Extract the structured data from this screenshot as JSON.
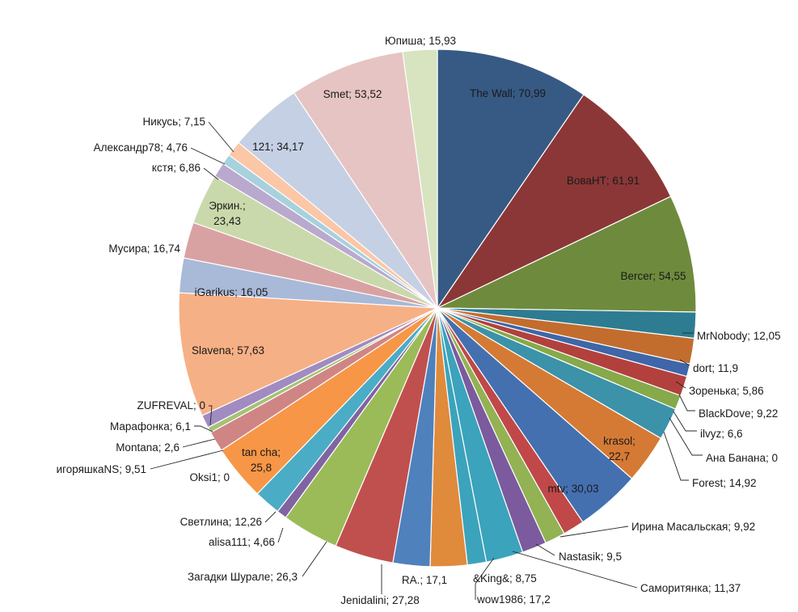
{
  "chart_data": {
    "type": "pie",
    "title": "",
    "start_angle_deg": 0,
    "direction": "clockwise",
    "legend": "none",
    "slices": [
      {
        "label": "The Wall",
        "value": 70.99,
        "value_text": "70,99",
        "color": "#375a84"
      },
      {
        "label": "ВоваНТ",
        "value": 61.91,
        "value_text": "61,91",
        "color": "#8b3737"
      },
      {
        "label": "Bercer",
        "value": 54.55,
        "value_text": "54,55",
        "color": "#6e8b3d"
      },
      {
        "label": "MrNobody",
        "value": 12.05,
        "value_text": "12,05",
        "color": "#2e7c92"
      },
      {
        "label": "dort",
        "value": 11.9,
        "value_text": "11,9",
        "color": "#c26d2e"
      },
      {
        "label": "Зоренька",
        "value": 5.86,
        "value_text": "5,86",
        "color": "#3e66a8"
      },
      {
        "label": "BlackDove",
        "value": 9.22,
        "value_text": "9,22",
        "color": "#b2413e"
      },
      {
        "label": "ilvyz",
        "value": 6.6,
        "value_text": "6,6",
        "color": "#86a94a"
      },
      {
        "label": "Ана Банана",
        "value": 0,
        "value_text": "0",
        "color": "#6c4f8e"
      },
      {
        "label": "Forest",
        "value": 14.92,
        "value_text": "14,92",
        "color": "#3b92a9"
      },
      {
        "label": "krasol",
        "value": 22.7,
        "value_text": "22,7",
        "color": "#d57a34"
      },
      {
        "label": "mtv",
        "value": 30.03,
        "value_text": "30,03",
        "color": "#4470b0"
      },
      {
        "label": "Ирина Масальская",
        "value": 9.92,
        "value_text": "9,92",
        "color": "#c04848"
      },
      {
        "label": "Nastasik",
        "value": 9.5,
        "value_text": "9,5",
        "color": "#92b254"
      },
      {
        "label": "Саморитянка",
        "value": 11.37,
        "value_text": "11,37",
        "color": "#7b5a9e"
      },
      {
        "label": "wow1986",
        "value": 17.2,
        "value_text": "17,2",
        "color": "#3ba3bb"
      },
      {
        "label": "&King&",
        "value": 8.75,
        "value_text": "8,75",
        "color": "#3ba3bb"
      },
      {
        "label": "RA.",
        "value": 17.1,
        "value_text": "17,1",
        "color": "#e08a3c"
      },
      {
        "label": "",
        "value": 17.14,
        "value_text": "",
        "color": "#4f81bd"
      },
      {
        "label": "Jenidalini",
        "value": 27.28,
        "value_text": "27,28",
        "color": "#c0504d"
      },
      {
        "label": "Загадки Шурале",
        "value": 26.3,
        "value_text": "26,3",
        "color": "#9bbb59"
      },
      {
        "label": "alisa111",
        "value": 4.66,
        "value_text": "4,66",
        "color": "#8064a2"
      },
      {
        "label": "Светлина",
        "value": 12.26,
        "value_text": "12,26",
        "color": "#4bacc6"
      },
      {
        "label": "Oksi1",
        "value": 0,
        "value_text": "0",
        "color": "#4bacc6"
      },
      {
        "label": "tan cha",
        "value": 25.8,
        "value_text": "25,8",
        "color": "#f79646"
      },
      {
        "label": "игоряшкаNS",
        "value": 9.51,
        "value_text": "9,51",
        "color": "#d08585"
      },
      {
        "label": "Montana",
        "value": 2.6,
        "value_text": "2,6",
        "color": "#a5c274"
      },
      {
        "label": "Марафонка",
        "value": 6.1,
        "value_text": "6,1",
        "color": "#a08cc0"
      },
      {
        "label": "ZUFREVAL",
        "value": 0,
        "value_text": "0",
        "color": "#a08cc0"
      },
      {
        "label": "Slavena",
        "value": 57.63,
        "value_text": "57,63",
        "color": "#f6b085"
      },
      {
        "label": "iGarikus",
        "value": 16.05,
        "value_text": "16,05",
        "color": "#a9b9d8"
      },
      {
        "label": "Мусира",
        "value": 16.74,
        "value_text": "16,74",
        "color": "#d9a2a2"
      },
      {
        "label": "Эркин.",
        "value": 23.43,
        "value_text": "23,43",
        "color": "#cad9ac"
      },
      {
        "label": "кстя",
        "value": 6.86,
        "value_text": "6,86",
        "color": "#b9a9cf"
      },
      {
        "label": "Александр78",
        "value": 4.76,
        "value_text": "4,76",
        "color": "#a8d1de"
      },
      {
        "label": "Никусь",
        "value": 7.15,
        "value_text": "7,15",
        "color": "#fbc7a6"
      },
      {
        "label": "121",
        "value": 34.17,
        "value_text": "34,17",
        "color": "#c5d0e4"
      },
      {
        "label": "Smet",
        "value": 53.52,
        "value_text": "53,52",
        "color": "#e6c4c3"
      },
      {
        "label": "Юпиша",
        "value": 15.93,
        "value_text": "15,93",
        "color": "#d7e4bf"
      }
    ]
  }
}
